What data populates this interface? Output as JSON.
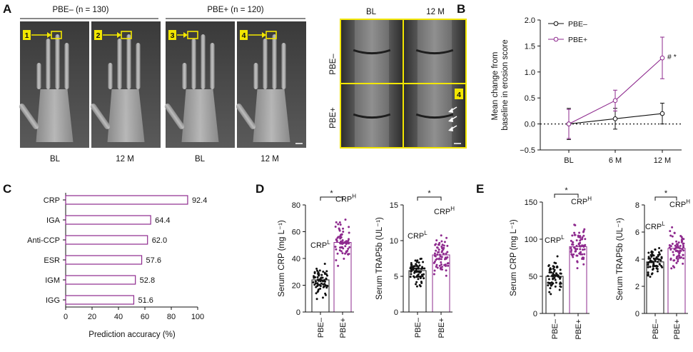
{
  "panels": {
    "A": "A",
    "B": "B",
    "C": "C",
    "D": "D",
    "E": "E"
  },
  "panelA": {
    "group_neg": "PBE– (n = 130)",
    "group_pos": "PBE+ (n = 120)",
    "xray_labels": [
      "BL",
      "12 M",
      "BL",
      "12 M"
    ],
    "markers": [
      "1",
      "2",
      "3",
      "4"
    ],
    "zoom_cols": [
      "BL",
      "12 M"
    ],
    "zoom_rows": [
      "PBE–",
      "PBE+"
    ],
    "zoom_marker": "4"
  },
  "colors": {
    "neg": "#111111",
    "pos": "#8e2a8e",
    "highlight": "#f2e600",
    "bar_c": "#8e2a8e"
  },
  "chart_data": [
    {
      "id": "B",
      "type": "line",
      "ylabel": "Mean change from baseline in erosion score",
      "categories": [
        "BL",
        "6 M",
        "12 M"
      ],
      "ylim": [
        -0.5,
        2.0
      ],
      "yticks": [
        -0.5,
        0.0,
        0.5,
        1.0,
        1.5,
        2.0
      ],
      "ytick_labels": [
        "−0.5",
        "0.0",
        "0.5",
        "1.0",
        "1.5",
        "2.0"
      ],
      "reference_line": 0,
      "legend_position": "top-right",
      "annotation": "# *",
      "series": [
        {
          "name": "PBE–",
          "values": [
            0.0,
            0.1,
            0.2
          ],
          "err": [
            0.3,
            0.2,
            0.2
          ]
        },
        {
          "name": "PBE+",
          "values": [
            0.0,
            0.45,
            1.27
          ],
          "err": [
            0.28,
            0.2,
            0.4
          ]
        }
      ]
    },
    {
      "id": "C",
      "type": "bar",
      "orientation": "horizontal",
      "xlabel": "Prediction accuracy (%)",
      "categories": [
        "CRP",
        "IGA",
        "Anti-CCP",
        "ESR",
        "IGM",
        "IGG"
      ],
      "values": [
        92.4,
        64.4,
        62.0,
        57.6,
        52.8,
        51.6
      ],
      "value_labels": [
        "92.4",
        "64.4",
        "62.0",
        "57.6",
        "52.8",
        "51.6"
      ],
      "xlim": [
        0,
        100
      ],
      "xticks": [
        "0",
        "20",
        "40",
        "60",
        "80",
        "100"
      ]
    },
    {
      "id": "D1",
      "type": "scatter",
      "ylabel": "Serum CRP (mg L⁻¹)",
      "categories": [
        "PBE–",
        "PBE+"
      ],
      "ylim": [
        0,
        80
      ],
      "yticks": [
        "0",
        "20",
        "40",
        "60",
        "80"
      ],
      "means": [
        24,
        52
      ],
      "group_labels": [
        "CRP",
        "CRP"
      ],
      "group_sup": [
        "L",
        "H"
      ],
      "significance": "*"
    },
    {
      "id": "D2",
      "type": "scatter",
      "ylabel": "Serum TRAP5b (UL⁻¹)",
      "categories": [
        "PBE–",
        "PBE+"
      ],
      "ylim": [
        0,
        15
      ],
      "yticks": [
        "0",
        "5",
        "10",
        "15"
      ],
      "means": [
        5.8,
        8.0
      ],
      "group_labels": [
        "CRP",
        "CRP"
      ],
      "group_sup": [
        "L",
        "H"
      ],
      "significance": "*"
    },
    {
      "id": "E1",
      "type": "scatter",
      "ylabel": "Serum CRP (mg L⁻¹)",
      "categories": [
        "PBE–",
        "PBE+"
      ],
      "ylim": [
        0,
        150
      ],
      "yticks": [
        "0",
        "50",
        "100",
        "150"
      ],
      "means": [
        50,
        90
      ],
      "group_labels": [
        "CRP",
        "CRP"
      ],
      "group_sup": [
        "L",
        "H"
      ],
      "significance": "*"
    },
    {
      "id": "E2",
      "type": "scatter",
      "ylabel": "Serum TRAP5b (UL⁻¹)",
      "categories": [
        "PBE–",
        "PBE+"
      ],
      "ylim": [
        0,
        8
      ],
      "yticks": [
        "0",
        "2",
        "4",
        "6",
        "8"
      ],
      "means": [
        3.8,
        4.8
      ],
      "group_labels": [
        "CRP",
        "CRP"
      ],
      "group_sup": [
        "L",
        "H"
      ],
      "significance": "*"
    }
  ]
}
